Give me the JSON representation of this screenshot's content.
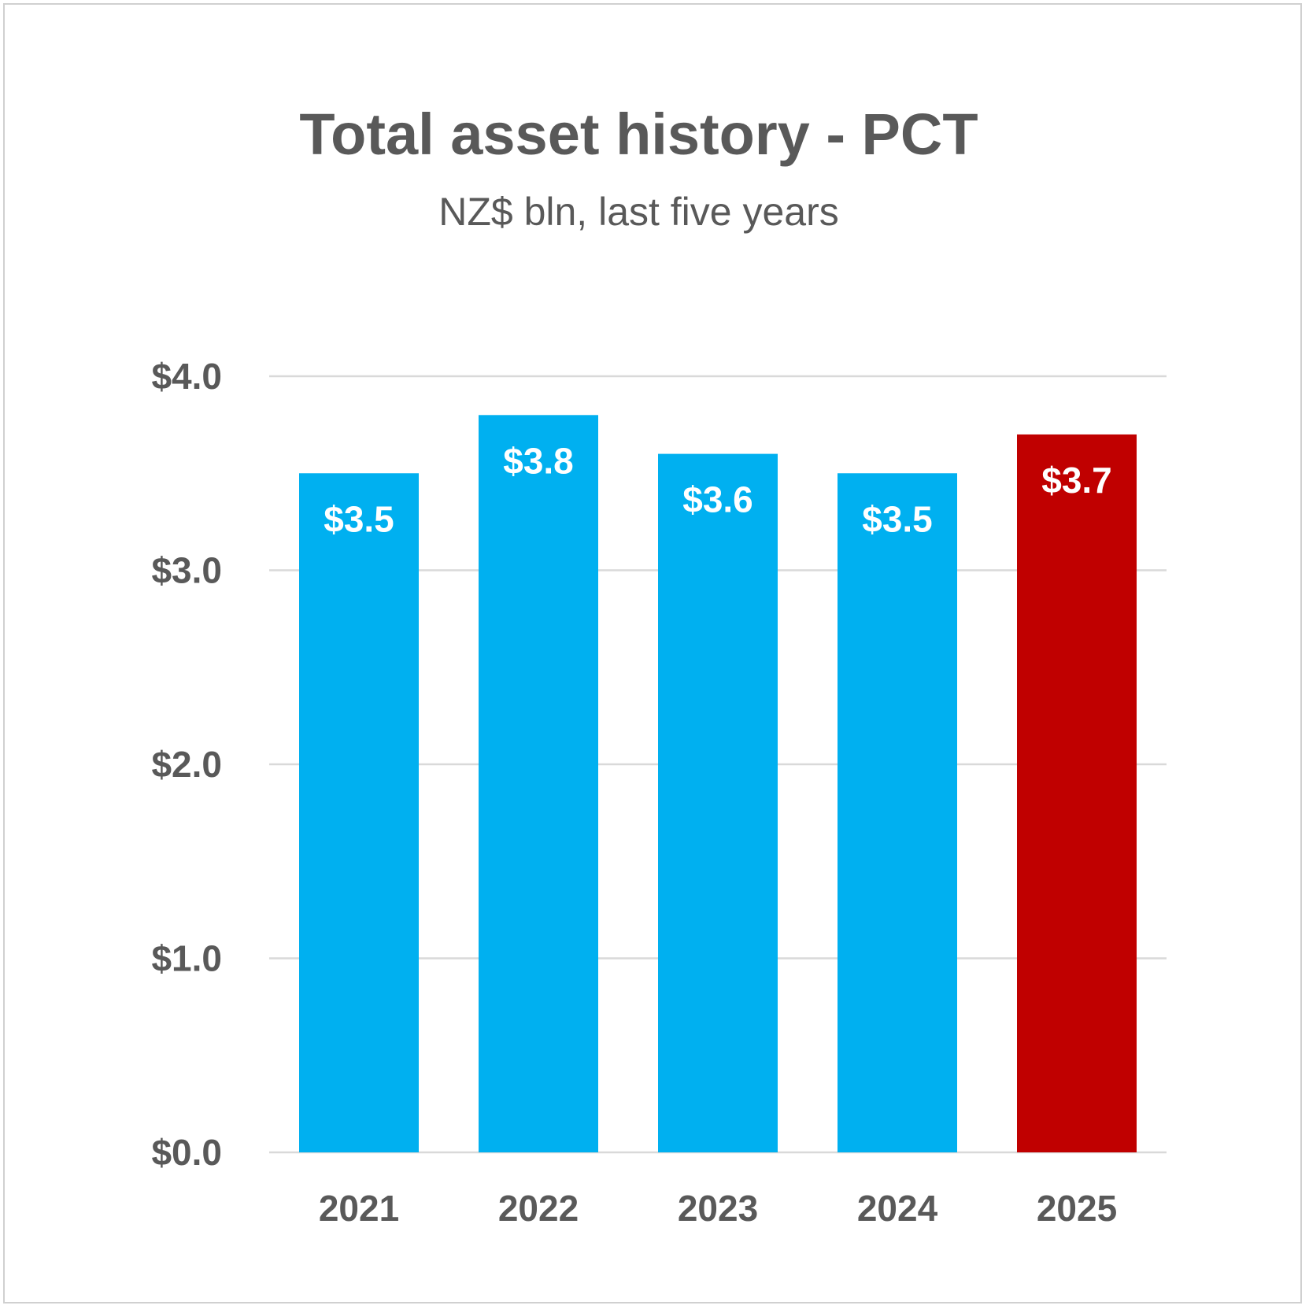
{
  "chart_data": {
    "type": "bar",
    "title": "Total asset history - PCT",
    "subtitle": "NZ$ bln, last five years",
    "categories": [
      "2021",
      "2022",
      "2023",
      "2024",
      "2025"
    ],
    "values": [
      3.5,
      3.8,
      3.6,
      3.5,
      3.7
    ],
    "data_labels": [
      "$3.5",
      "$3.8",
      "$3.6",
      "$3.5",
      "$3.7"
    ],
    "bar_colors": [
      "#00b0f0",
      "#00b0f0",
      "#00b0f0",
      "#00b0f0",
      "#c00000"
    ],
    "ylim": [
      0,
      4
    ],
    "yticks": [
      0,
      1,
      2,
      3,
      4
    ],
    "ytick_labels": [
      "$0.0",
      "$1.0",
      "$2.0",
      "$3.0",
      "$4.0"
    ],
    "xlabel": "",
    "ylabel": "",
    "grid": true,
    "legend": "none"
  }
}
